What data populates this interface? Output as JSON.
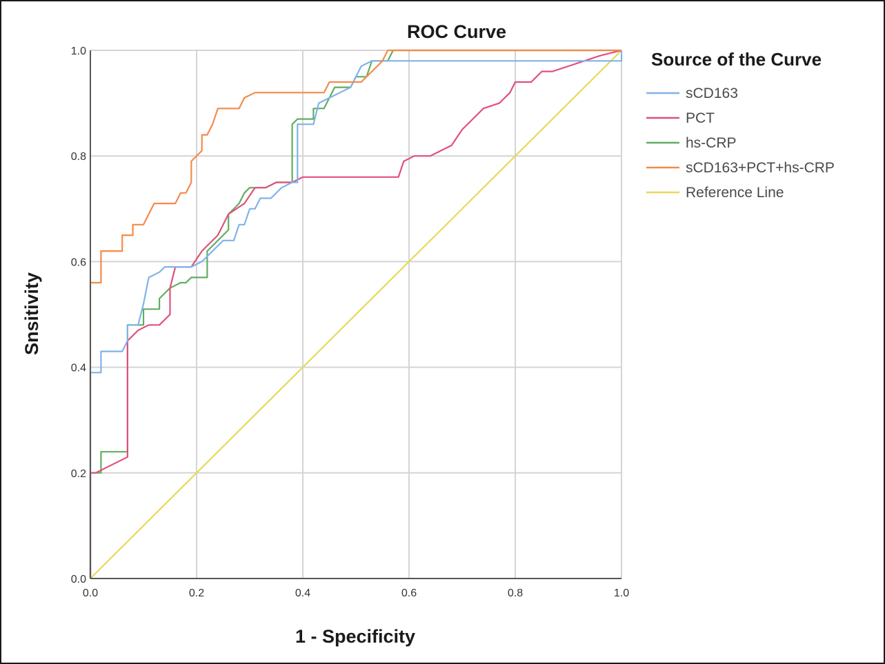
{
  "chart_data": {
    "type": "line",
    "title": "ROC Curve",
    "xlabel": "1 - Specificity",
    "ylabel": "Snsitivity",
    "xlim": [
      0,
      1
    ],
    "ylim": [
      0,
      1
    ],
    "xticks": [
      "0.0",
      "0.2",
      "0.4",
      "0.6",
      "0.8",
      "1.0"
    ],
    "yticks": [
      "0.0",
      "0.2",
      "0.4",
      "0.6",
      "0.8",
      "1.0"
    ],
    "grid": true,
    "legend": {
      "title": "Source of the Curve",
      "placement": "right"
    },
    "series": [
      {
        "name": "sCD163",
        "color": "#7fb2ea",
        "points": [
          [
            0,
            0
          ],
          [
            0,
            0.39
          ],
          [
            0.02,
            0.39
          ],
          [
            0.02,
            0.43
          ],
          [
            0.06,
            0.43
          ],
          [
            0.07,
            0.45
          ],
          [
            0.07,
            0.48
          ],
          [
            0.09,
            0.48
          ],
          [
            0.1,
            0.52
          ],
          [
            0.11,
            0.57
          ],
          [
            0.13,
            0.58
          ],
          [
            0.14,
            0.59
          ],
          [
            0.16,
            0.59
          ],
          [
            0.19,
            0.59
          ],
          [
            0.21,
            0.6
          ],
          [
            0.23,
            0.62
          ],
          [
            0.25,
            0.64
          ],
          [
            0.27,
            0.64
          ],
          [
            0.28,
            0.67
          ],
          [
            0.29,
            0.67
          ],
          [
            0.3,
            0.7
          ],
          [
            0.31,
            0.7
          ],
          [
            0.32,
            0.72
          ],
          [
            0.34,
            0.72
          ],
          [
            0.36,
            0.74
          ],
          [
            0.38,
            0.75
          ],
          [
            0.39,
            0.75
          ],
          [
            0.39,
            0.86
          ],
          [
            0.42,
            0.86
          ],
          [
            0.43,
            0.9
          ],
          [
            0.45,
            0.91
          ],
          [
            0.47,
            0.92
          ],
          [
            0.49,
            0.93
          ],
          [
            0.51,
            0.97
          ],
          [
            0.53,
            0.98
          ],
          [
            0.57,
            0.98
          ],
          [
            1.0,
            0.98
          ],
          [
            1.0,
            1.0
          ]
        ]
      },
      {
        "name": "PCT",
        "color": "#e0507a",
        "points": [
          [
            0,
            0
          ],
          [
            0,
            0.2
          ],
          [
            0.01,
            0.2
          ],
          [
            0.07,
            0.23
          ],
          [
            0.07,
            0.45
          ],
          [
            0.09,
            0.47
          ],
          [
            0.11,
            0.48
          ],
          [
            0.13,
            0.48
          ],
          [
            0.15,
            0.5
          ],
          [
            0.15,
            0.55
          ],
          [
            0.16,
            0.59
          ],
          [
            0.19,
            0.59
          ],
          [
            0.21,
            0.62
          ],
          [
            0.22,
            0.63
          ],
          [
            0.24,
            0.65
          ],
          [
            0.26,
            0.69
          ],
          [
            0.29,
            0.71
          ],
          [
            0.31,
            0.74
          ],
          [
            0.33,
            0.74
          ],
          [
            0.35,
            0.75
          ],
          [
            0.38,
            0.75
          ],
          [
            0.4,
            0.76
          ],
          [
            0.5,
            0.76
          ],
          [
            0.58,
            0.76
          ],
          [
            0.59,
            0.79
          ],
          [
            0.61,
            0.8
          ],
          [
            0.64,
            0.8
          ],
          [
            0.66,
            0.81
          ],
          [
            0.68,
            0.82
          ],
          [
            0.7,
            0.85
          ],
          [
            0.72,
            0.87
          ],
          [
            0.74,
            0.89
          ],
          [
            0.77,
            0.9
          ],
          [
            0.79,
            0.92
          ],
          [
            0.8,
            0.94
          ],
          [
            0.83,
            0.94
          ],
          [
            0.85,
            0.96
          ],
          [
            0.87,
            0.96
          ],
          [
            0.9,
            0.97
          ],
          [
            0.93,
            0.98
          ],
          [
            0.96,
            0.99
          ],
          [
            1.0,
            1.0
          ]
        ]
      },
      {
        "name": "hs-CRP",
        "color": "#5fae5f",
        "points": [
          [
            0,
            0
          ],
          [
            0,
            0.2
          ],
          [
            0.02,
            0.2
          ],
          [
            0.02,
            0.24
          ],
          [
            0.07,
            0.24
          ],
          [
            0.07,
            0.48
          ],
          [
            0.1,
            0.48
          ],
          [
            0.1,
            0.51
          ],
          [
            0.13,
            0.51
          ],
          [
            0.13,
            0.53
          ],
          [
            0.15,
            0.55
          ],
          [
            0.17,
            0.56
          ],
          [
            0.18,
            0.56
          ],
          [
            0.19,
            0.57
          ],
          [
            0.22,
            0.57
          ],
          [
            0.22,
            0.62
          ],
          [
            0.24,
            0.64
          ],
          [
            0.26,
            0.66
          ],
          [
            0.26,
            0.69
          ],
          [
            0.28,
            0.71
          ],
          [
            0.29,
            0.73
          ],
          [
            0.3,
            0.74
          ],
          [
            0.33,
            0.74
          ],
          [
            0.35,
            0.75
          ],
          [
            0.38,
            0.75
          ],
          [
            0.38,
            0.86
          ],
          [
            0.39,
            0.87
          ],
          [
            0.42,
            0.87
          ],
          [
            0.42,
            0.89
          ],
          [
            0.44,
            0.89
          ],
          [
            0.45,
            0.91
          ],
          [
            0.46,
            0.93
          ],
          [
            0.49,
            0.93
          ],
          [
            0.5,
            0.95
          ],
          [
            0.52,
            0.95
          ],
          [
            0.53,
            0.98
          ],
          [
            0.56,
            0.98
          ],
          [
            0.57,
            1.0
          ],
          [
            1.0,
            1.0
          ]
        ]
      },
      {
        "name": "sCD163+PCT+hs-CRP",
        "color": "#f48a4a",
        "points": [
          [
            0,
            0
          ],
          [
            0,
            0.56
          ],
          [
            0.02,
            0.56
          ],
          [
            0.02,
            0.62
          ],
          [
            0.06,
            0.62
          ],
          [
            0.06,
            0.65
          ],
          [
            0.08,
            0.65
          ],
          [
            0.08,
            0.67
          ],
          [
            0.1,
            0.67
          ],
          [
            0.11,
            0.69
          ],
          [
            0.12,
            0.71
          ],
          [
            0.16,
            0.71
          ],
          [
            0.17,
            0.73
          ],
          [
            0.18,
            0.73
          ],
          [
            0.19,
            0.75
          ],
          [
            0.19,
            0.79
          ],
          [
            0.21,
            0.81
          ],
          [
            0.21,
            0.84
          ],
          [
            0.22,
            0.84
          ],
          [
            0.23,
            0.86
          ],
          [
            0.24,
            0.89
          ],
          [
            0.26,
            0.89
          ],
          [
            0.28,
            0.89
          ],
          [
            0.29,
            0.91
          ],
          [
            0.31,
            0.92
          ],
          [
            0.34,
            0.92
          ],
          [
            0.41,
            0.92
          ],
          [
            0.44,
            0.92
          ],
          [
            0.45,
            0.94
          ],
          [
            0.51,
            0.94
          ],
          [
            0.53,
            0.96
          ],
          [
            0.55,
            0.98
          ],
          [
            0.56,
            1.0
          ],
          [
            1.0,
            1.0
          ]
        ]
      },
      {
        "name": "Reference Line",
        "color": "#e8d85a",
        "points": [
          [
            0,
            0
          ],
          [
            1,
            1
          ]
        ]
      }
    ]
  }
}
